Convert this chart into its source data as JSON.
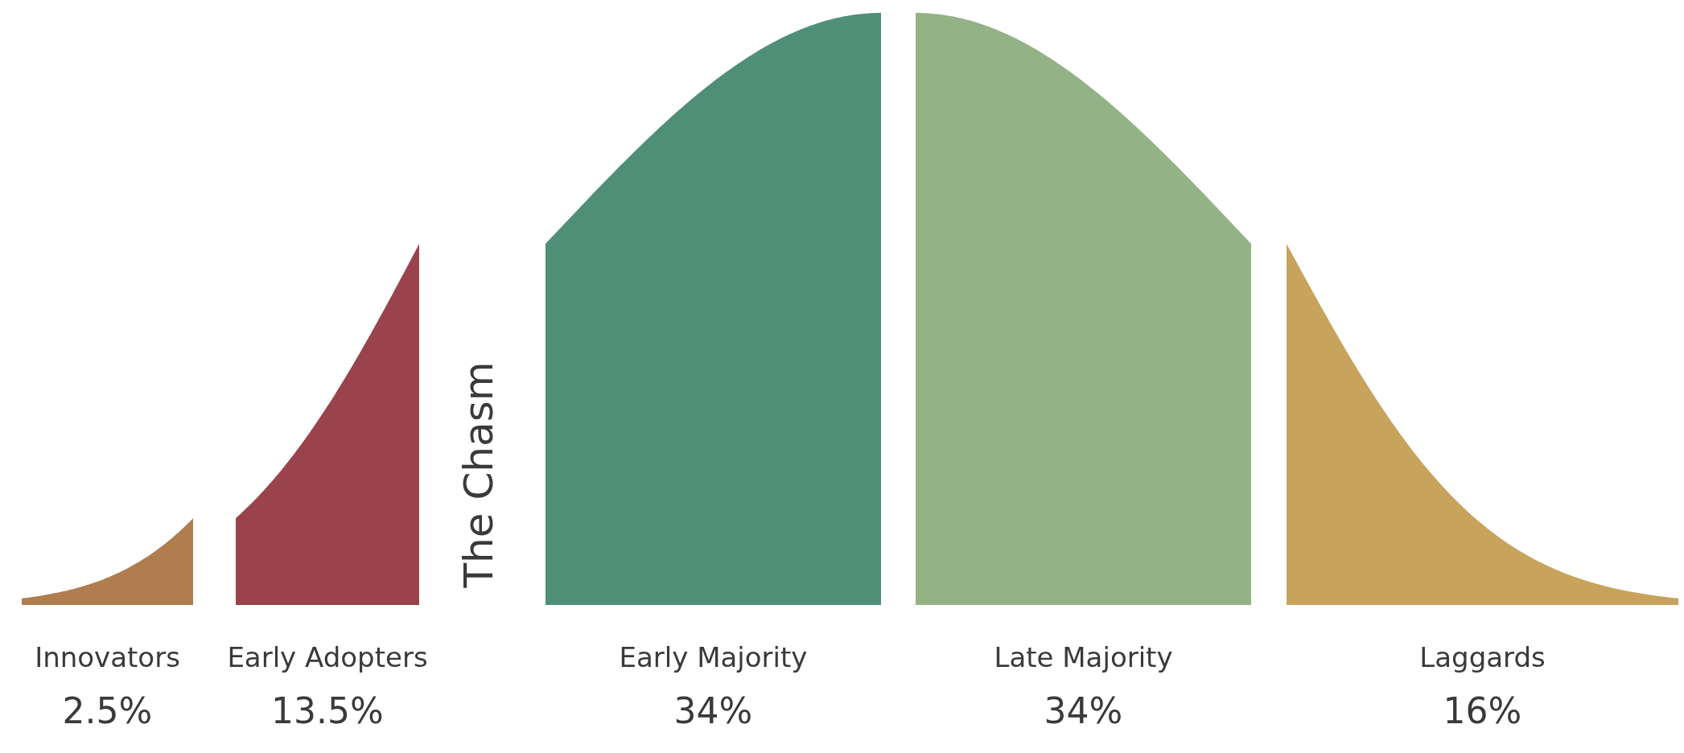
{
  "chart_data": {
    "type": "other",
    "categories": [
      "Innovators",
      "Early Adopters",
      "Early Majority",
      "Late Majority",
      "Laggards"
    ],
    "values": [
      2.5,
      13.5,
      34,
      34,
      16
    ],
    "value_labels": [
      "2.5%",
      "13.5%",
      "34%",
      "34%",
      "16%"
    ],
    "colors": [
      "#b07d4e",
      "#9a434c",
      "#4f8f78",
      "#93b386",
      "#c7a35c"
    ],
    "annotations": [
      "The Chasm"
    ]
  }
}
